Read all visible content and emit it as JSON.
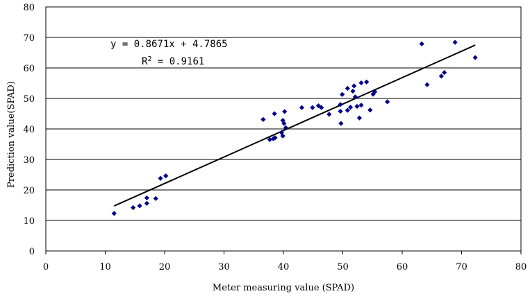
{
  "chart_data": {
    "type": "scatter",
    "xlabel": "Meter measuring value (SPAD)",
    "ylabel": "Prediction value(SPAD)",
    "xlim": [
      0,
      80
    ],
    "ylim": [
      0,
      80
    ],
    "x_ticks": [
      "0",
      "10",
      "20",
      "30",
      "40",
      "50",
      "60",
      "70",
      "80"
    ],
    "y_ticks": [
      "0",
      "10",
      "20",
      "30",
      "40",
      "50",
      "60",
      "70",
      "80"
    ],
    "grid": "horizontal",
    "point_color": "#00008B",
    "annotations": {
      "equation": "y = 0.8671x + 4.7865",
      "r2_label": "R",
      "r2_exp": "2",
      "r2_value": " = 0.9161"
    },
    "trendline": {
      "slope": 0.8671,
      "intercept": 4.7865,
      "x_range": [
        11.5,
        72.3
      ]
    },
    "points": [
      [
        11.5,
        12.3
      ],
      [
        14.7,
        14.2
      ],
      [
        15.8,
        14.8
      ],
      [
        17.0,
        15.6
      ],
      [
        17.0,
        17.4
      ],
      [
        18.5,
        17.2
      ],
      [
        19.3,
        23.8
      ],
      [
        20.2,
        24.6
      ],
      [
        36.6,
        43.1
      ],
      [
        37.7,
        36.5
      ],
      [
        38.3,
        36.8
      ],
      [
        38.5,
        45.0
      ],
      [
        38.6,
        37.1
      ],
      [
        39.7,
        38.8
      ],
      [
        39.9,
        42.8
      ],
      [
        39.9,
        37.7
      ],
      [
        40.1,
        41.8
      ],
      [
        40.2,
        45.7
      ],
      [
        40.4,
        40.4
      ],
      [
        43.1,
        47.0
      ],
      [
        44.9,
        47.0
      ],
      [
        45.9,
        47.6
      ],
      [
        46.4,
        47.0
      ],
      [
        47.7,
        44.8
      ],
      [
        49.6,
        48.0
      ],
      [
        49.6,
        45.8
      ],
      [
        49.7,
        41.8
      ],
      [
        49.9,
        51.3
      ],
      [
        50.8,
        53.3
      ],
      [
        50.8,
        46.1
      ],
      [
        51.3,
        47.1
      ],
      [
        51.7,
        52.4
      ],
      [
        51.9,
        54.1
      ],
      [
        52.1,
        50.5
      ],
      [
        52.4,
        47.4
      ],
      [
        52.8,
        43.6
      ],
      [
        53.1,
        47.8
      ],
      [
        53.1,
        55.1
      ],
      [
        54.0,
        55.4
      ],
      [
        54.6,
        46.2
      ],
      [
        55.1,
        51.4
      ],
      [
        55.4,
        52.2
      ],
      [
        57.5,
        48.9
      ],
      [
        63.3,
        67.9
      ],
      [
        64.2,
        54.5
      ],
      [
        66.6,
        57.3
      ],
      [
        67.1,
        58.5
      ],
      [
        68.9,
        68.4
      ],
      [
        72.3,
        63.4
      ]
    ]
  }
}
